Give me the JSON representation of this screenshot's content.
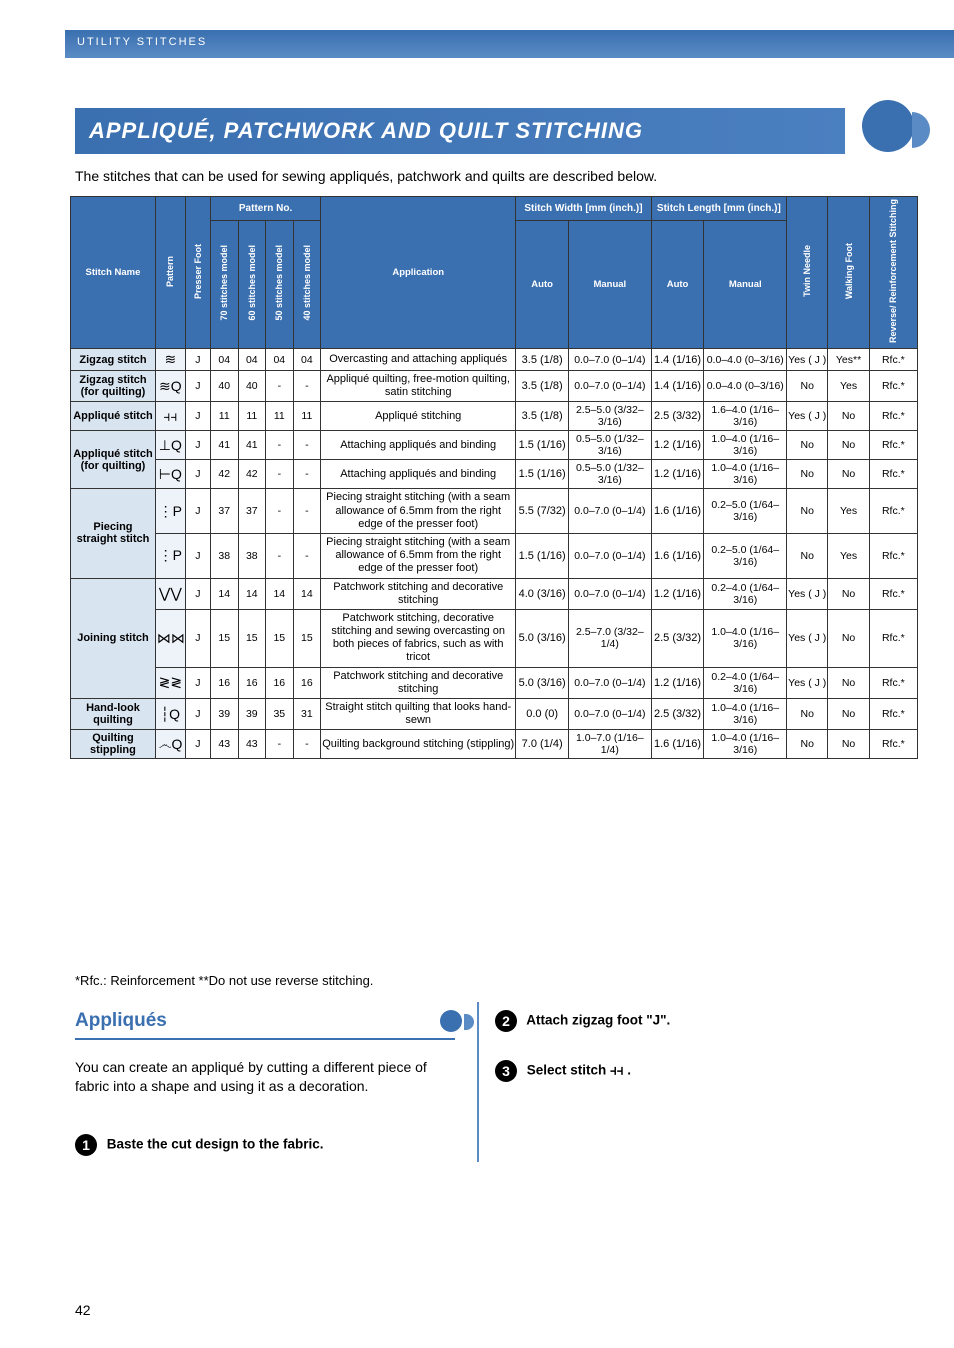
{
  "header_section": "UTILITY STITCHES",
  "title": "APPLIQUÉ, PATCHWORK AND QUILT STITCHING",
  "intro": "The stitches that can be used for sewing appliqués, patchwork and quilts are described below.",
  "headers": {
    "stitch_name": "Stitch Name",
    "pattern": "Pattern",
    "presser_foot": "Presser Foot",
    "pattern_no": "Pattern No.",
    "m70": "70 stitches model",
    "m60": "60 stitches model",
    "m50": "50 stitches model",
    "m40": "40 stitches model",
    "application": "Application",
    "width": "Stitch Width [mm (inch.)]",
    "length": "Stitch Length [mm (inch.)]",
    "auto": "Auto",
    "manual": "Manual",
    "twin": "Twin Needle",
    "walking": "Walking Foot",
    "reverse": "Reverse/ Reinforcement Stitching"
  },
  "rows": [
    {
      "name": "Zigzag stitch",
      "glyph": "≋",
      "foot": "J",
      "n70": "04",
      "n60": "04",
      "n50": "04",
      "n40": "04",
      "app": "Overcasting and attaching appliqués",
      "wa": "3.5 (1/8)",
      "wm": "0.0–7.0 (0–1/4)",
      "la": "1.4 (1/16)",
      "lm": "0.0–4.0 (0–3/16)",
      "twin": "Yes ( J )",
      "walk": "Yes**",
      "rev": "Rfc.*"
    },
    {
      "name": "Zigzag stitch (for quilting)",
      "glyph": "≋Q",
      "foot": "J",
      "n70": "40",
      "n60": "40",
      "n50": "-",
      "n40": "-",
      "app": "Appliqué quilting, free-motion quilting, satin stitching",
      "wa": "3.5 (1/8)",
      "wm": "0.0–7.0 (0–1/4)",
      "la": "1.4 (1/16)",
      "lm": "0.0–4.0 (0–3/16)",
      "twin": "No",
      "walk": "Yes",
      "rev": "Rfc.*"
    },
    {
      "name": "Appliqué stitch",
      "glyph": "⫞⫞",
      "foot": "J",
      "n70": "11",
      "n60": "11",
      "n50": "11",
      "n40": "11",
      "app": "Appliqué stitching",
      "wa": "3.5 (1/8)",
      "wm": "2.5–5.0 (3/32–3/16)",
      "la": "2.5 (3/32)",
      "lm": "1.6–4.0 (1/16–3/16)",
      "twin": "Yes ( J )",
      "walk": "No",
      "rev": "Rfc.*"
    },
    {
      "name": "Appliqué stitch (for quilting)",
      "rowspan": 2,
      "glyph": "⊥Q",
      "foot": "J",
      "n70": "41",
      "n60": "41",
      "n50": "-",
      "n40": "-",
      "app": "Attaching appliqués and binding",
      "wa": "1.5 (1/16)",
      "wm": "0.5–5.0 (1/32–3/16)",
      "la": "1.2 (1/16)",
      "lm": "1.0–4.0 (1/16–3/16)",
      "twin": "No",
      "walk": "No",
      "rev": "Rfc.*"
    },
    {
      "glyph": "⊢Q",
      "foot": "J",
      "n70": "42",
      "n60": "42",
      "n50": "-",
      "n40": "-",
      "app": "Attaching appliqués and binding",
      "wa": "1.5 (1/16)",
      "wm": "0.5–5.0 (1/32–3/16)",
      "la": "1.2 (1/16)",
      "lm": "1.0–4.0 (1/16–3/16)",
      "twin": "No",
      "walk": "No",
      "rev": "Rfc.*"
    },
    {
      "name": "Piecing straight stitch",
      "rowspan": 2,
      "glyph": "⋮P",
      "foot": "J",
      "n70": "37",
      "n60": "37",
      "n50": "-",
      "n40": "-",
      "app": "Piecing straight stitching (with a seam allowance of 6.5mm from the right edge of the presser foot)",
      "wa": "5.5 (7/32)",
      "wm": "0.0–7.0 (0–1/4)",
      "la": "1.6 (1/16)",
      "lm": "0.2–5.0 (1/64–3/16)",
      "twin": "No",
      "walk": "Yes",
      "rev": "Rfc.*"
    },
    {
      "glyph": "⋮P",
      "foot": "J",
      "n70": "38",
      "n60": "38",
      "n50": "-",
      "n40": "-",
      "app": "Piecing straight stitching (with a seam allowance of 6.5mm from the right edge of the presser foot)",
      "wa": "1.5 (1/16)",
      "wm": "0.0–7.0 (0–1/4)",
      "la": "1.6 (1/16)",
      "lm": "0.2–5.0 (1/64–3/16)",
      "twin": "No",
      "walk": "Yes",
      "rev": "Rfc.*"
    },
    {
      "name": "Joining stitch",
      "rowspan": 3,
      "glyph": "⋁⋁",
      "foot": "J",
      "n70": "14",
      "n60": "14",
      "n50": "14",
      "n40": "14",
      "app": "Patchwork stitching and decorative stitching",
      "wa": "4.0 (3/16)",
      "wm": "0.0–7.0 (0–1/4)",
      "la": "1.2 (1/16)",
      "lm": "0.2–4.0 (1/64–3/16)",
      "twin": "Yes ( J )",
      "walk": "No",
      "rev": "Rfc.*"
    },
    {
      "glyph": "⋈⋈",
      "foot": "J",
      "n70": "15",
      "n60": "15",
      "n50": "15",
      "n40": "15",
      "app": "Patchwork stitching, decorative stitching and sewing overcasting on both pieces of fabrics, such as with tricot",
      "wa": "5.0 (3/16)",
      "wm": "2.5–7.0 (3/32–1/4)",
      "la": "2.5 (3/32)",
      "lm": "1.0–4.0 (1/16–3/16)",
      "twin": "Yes ( J )",
      "walk": "No",
      "rev": "Rfc.*"
    },
    {
      "glyph": "≷≷",
      "foot": "J",
      "n70": "16",
      "n60": "16",
      "n50": "16",
      "n40": "16",
      "app": "Patchwork stitching and decorative stitching",
      "wa": "5.0 (3/16)",
      "wm": "0.0–7.0 (0–1/4)",
      "la": "1.2 (1/16)",
      "lm": "0.2–4.0 (1/64–3/16)",
      "twin": "Yes ( J )",
      "walk": "No",
      "rev": "Rfc.*"
    },
    {
      "name": "Hand-look quilting",
      "glyph": "┆Q",
      "foot": "J",
      "n70": "39",
      "n60": "39",
      "n50": "35",
      "n40": "31",
      "app": "Straight stitch quilting that looks hand-sewn",
      "wa": "0.0 (0)",
      "wm": "0.0–7.0 (0–1/4)",
      "la": "2.5 (3/32)",
      "lm": "1.0–4.0 (1/16–3/16)",
      "twin": "No",
      "walk": "No",
      "rev": "Rfc.*"
    },
    {
      "name": "Quilting stippling",
      "glyph": "෴Q",
      "foot": "J",
      "n70": "43",
      "n60": "43",
      "n50": "-",
      "n40": "-",
      "app": "Quilting background stitching (stippling)",
      "wa": "7.0 (1/4)",
      "wm": "1.0–7.0 (1/16–1/4)",
      "la": "1.6 (1/16)",
      "lm": "1.0–4.0 (1/16–3/16)",
      "twin": "No",
      "walk": "No",
      "rev": "Rfc.*"
    }
  ],
  "footnote": "*Rfc.: Reinforcement          **Do not use reverse stitching.",
  "section_title": "Appliqués",
  "section_para": "You can create an appliqué by cutting a different piece of fabric into a shape and using it as a decoration.",
  "steps": [
    {
      "n": "1",
      "text": "Baste the cut design to the fabric."
    },
    {
      "n": "2",
      "text": "Attach zigzag foot \"J\"."
    },
    {
      "n": "3",
      "text": "Select stitch ⫞⫞ ."
    }
  ],
  "page_number": "42",
  "colors": {
    "blue": "#3a6fb0",
    "light_blue": "#5a8bc4",
    "name_bg": "#d9e4f1",
    "pattern_bg": "#eef3fa",
    "border": "#333"
  }
}
